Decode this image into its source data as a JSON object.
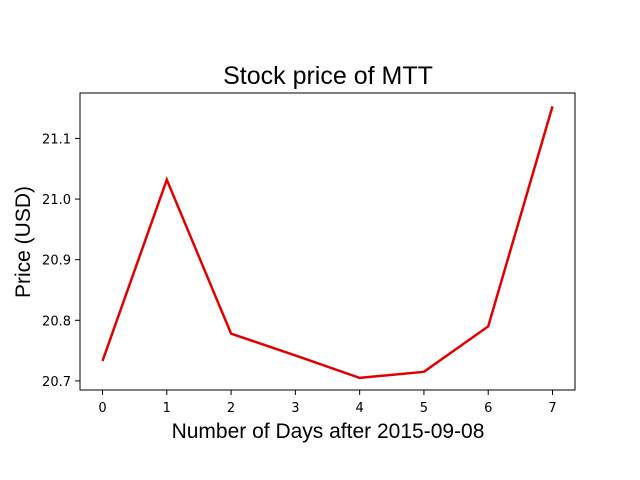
{
  "chart_data": {
    "type": "line",
    "title": "Stock price of MTT",
    "xlabel": "Number of Days after 2015-09-08",
    "ylabel": "Price (USD)",
    "x": [
      0,
      1,
      2,
      3,
      4,
      5,
      6,
      7
    ],
    "series": [
      {
        "values": [
          20.733,
          21.032,
          20.778,
          20.742,
          20.705,
          20.715,
          20.79,
          21.153
        ],
        "color": "#e00000"
      }
    ],
    "xlim": [
      -0.35,
      7.35
    ],
    "ylim": [
      20.685,
      21.175
    ],
    "xticks": [
      "0",
      "1",
      "2",
      "3",
      "4",
      "5",
      "6",
      "7"
    ],
    "yticks": [
      "20.7",
      "20.8",
      "20.9",
      "21.0",
      "21.1"
    ],
    "grid": false
  }
}
